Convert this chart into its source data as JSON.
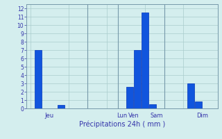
{
  "bars": [
    {
      "x": 1,
      "height": 7.0
    },
    {
      "x": 4,
      "height": 0.4
    },
    {
      "x": 13,
      "height": 2.6
    },
    {
      "x": 14,
      "height": 7.0
    },
    {
      "x": 15,
      "height": 11.5
    },
    {
      "x": 16,
      "height": 0.5
    },
    {
      "x": 21,
      "height": 3.0
    },
    {
      "x": 22,
      "height": 0.8
    }
  ],
  "bar_color": "#1155dd",
  "bar_edgecolor": "#0033bb",
  "background_color": "#d4eeee",
  "grid_color": "#aacccc",
  "xlabel": "Précipitations 24h ( mm )",
  "ylim": [
    0,
    12.5
  ],
  "yticks": [
    0,
    1,
    2,
    3,
    4,
    5,
    6,
    7,
    8,
    9,
    10,
    11,
    12
  ],
  "day_labels": [
    {
      "x": 2.5,
      "label": "Jeu"
    },
    {
      "x": 12.0,
      "label": "Lun"
    },
    {
      "x": 13.5,
      "label": "Ven"
    },
    {
      "x": 16.5,
      "label": "Sam"
    },
    {
      "x": 22.5,
      "label": "Dim"
    }
  ],
  "vlines": [
    7.5,
    11.5,
    17.5
  ],
  "xlim": [
    -0.5,
    24.5
  ],
  "bar_width": 0.85
}
